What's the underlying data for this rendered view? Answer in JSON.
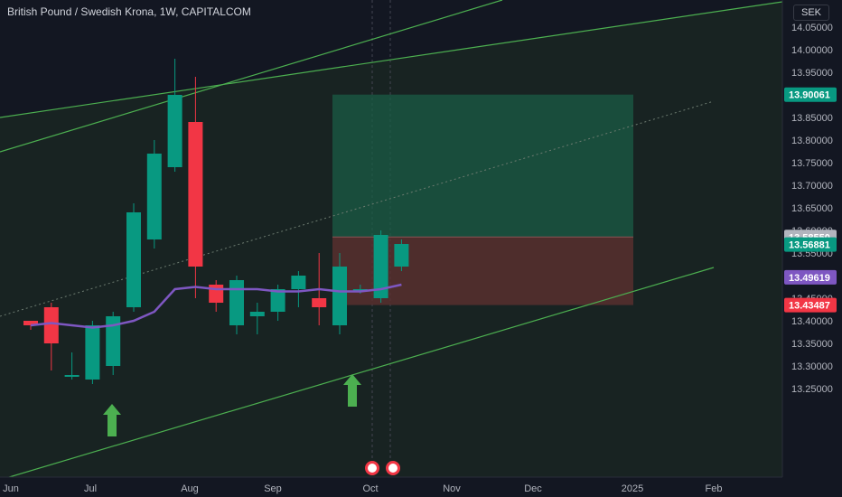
{
  "header": {
    "title": "British Pound / Swedish Krona, 1W, CAPITALCOM",
    "currency": "SEK"
  },
  "colors": {
    "background": "#131722",
    "up": "#089981",
    "down": "#f23645",
    "ma": "#7e57c2",
    "trendline": "#4caf50",
    "arrow": "#4caf50",
    "target_zone": "#1a5c45",
    "stop_zone": "#5c3030",
    "price_label_green": "#089981",
    "price_label_purple": "#7e57c2",
    "price_label_red": "#f23645",
    "price_label_grey": "#b2b5be"
  },
  "chart_data": {
    "type": "candlestick",
    "title": "British Pound / Swedish Krona, 1W, CAPITALCOM",
    "ylim": [
      13.23,
      14.08
    ],
    "y_ticks": [
      "14.05000",
      "14.00000",
      "13.95000",
      "13.90000",
      "13.85000",
      "13.80000",
      "13.75000",
      "13.70000",
      "13.65000",
      "13.60000",
      "13.55000",
      "13.50000",
      "13.45000",
      "13.40000",
      "13.35000",
      "13.30000",
      "13.25000"
    ],
    "x_ticks": [
      "Jun",
      "Jul",
      "Aug",
      "Sep",
      "Oct",
      "Nov",
      "Dec",
      "2025",
      "Feb"
    ],
    "candles": [
      {
        "o": 13.4,
        "h": 13.4,
        "l": 13.38,
        "c": 13.39
      },
      {
        "o": 13.43,
        "h": 13.44,
        "l": 13.29,
        "c": 13.35
      },
      {
        "o": 13.28,
        "h": 13.33,
        "l": 13.27,
        "c": 13.28
      },
      {
        "o": 13.27,
        "h": 13.4,
        "l": 13.26,
        "c": 13.39
      },
      {
        "o": 13.3,
        "h": 13.42,
        "l": 13.28,
        "c": 13.41
      },
      {
        "o": 13.43,
        "h": 13.66,
        "l": 13.42,
        "c": 13.64
      },
      {
        "o": 13.58,
        "h": 13.8,
        "l": 13.56,
        "c": 13.77
      },
      {
        "o": 13.74,
        "h": 13.98,
        "l": 13.73,
        "c": 13.9
      },
      {
        "o": 13.84,
        "h": 13.94,
        "l": 13.45,
        "c": 13.52
      },
      {
        "o": 13.48,
        "h": 13.49,
        "l": 13.42,
        "c": 13.44
      },
      {
        "o": 13.39,
        "h": 13.5,
        "l": 13.37,
        "c": 13.49
      },
      {
        "o": 13.41,
        "h": 13.44,
        "l": 13.37,
        "c": 13.42
      },
      {
        "o": 13.42,
        "h": 13.48,
        "l": 13.4,
        "c": 13.47
      },
      {
        "o": 13.47,
        "h": 13.51,
        "l": 13.43,
        "c": 13.5
      },
      {
        "o": 13.45,
        "h": 13.55,
        "l": 13.39,
        "c": 13.43
      },
      {
        "o": 13.39,
        "h": 13.55,
        "l": 13.37,
        "c": 13.52
      },
      {
        "o": 13.47,
        "h": 13.48,
        "l": 13.46,
        "c": 13.47
      },
      {
        "o": 13.45,
        "h": 13.6,
        "l": 13.44,
        "c": 13.59
      },
      {
        "o": 13.52,
        "h": 13.58,
        "l": 13.51,
        "c": 13.57
      }
    ],
    "ma": [
      13.39,
      13.395,
      13.39,
      13.385,
      13.39,
      13.4,
      13.42,
      13.47,
      13.475,
      13.47,
      13.47,
      13.47,
      13.465,
      13.465,
      13.47,
      13.465,
      13.465,
      13.47,
      13.48
    ],
    "price_labels": [
      {
        "value": 13.90061,
        "label": "13.90061",
        "color": "#089981"
      },
      {
        "value": 13.5855,
        "label": "13.58550",
        "color": "#b2b5be"
      },
      {
        "value": 13.56881,
        "label": "13.56881",
        "color": "#089981"
      },
      {
        "value": 13.49619,
        "label": "13.49619",
        "color": "#7e57c2"
      },
      {
        "value": 13.43487,
        "label": "13.43487",
        "color": "#f23645"
      }
    ],
    "position": {
      "entry": 13.5855,
      "target": 13.90061,
      "stop": 13.43487
    }
  }
}
